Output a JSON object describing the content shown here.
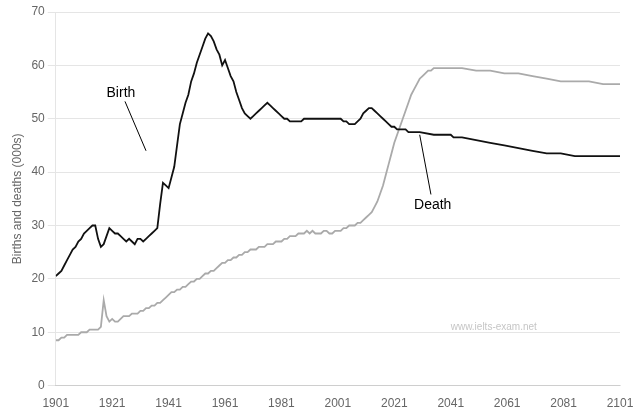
{
  "chart_data": {
    "type": "line",
    "ylabel": "Births and deaths (000s)",
    "xlim": [
      1901,
      2101
    ],
    "ylim": [
      0,
      70
    ],
    "xticks": [
      1901,
      1921,
      1941,
      1961,
      1981,
      2001,
      2021,
      2041,
      2061,
      2081,
      2101
    ],
    "yticks": [
      0,
      10,
      20,
      30,
      40,
      50,
      60,
      70
    ],
    "grid": "y",
    "series": [
      {
        "color": "#111111",
        "x": [
          1901,
          1902,
          1903,
          1904,
          1905,
          1906,
          1907,
          1908,
          1909,
          1910,
          1911,
          1912,
          1913,
          1914,
          1915,
          1916,
          1917,
          1918,
          1919,
          1920,
          1921,
          1922,
          1923,
          1924,
          1925,
          1926,
          1927,
          1928,
          1929,
          1930,
          1931,
          1932,
          1933,
          1934,
          1935,
          1936,
          1937,
          1938,
          1939,
          1940,
          1941,
          1942,
          1943,
          1944,
          1945,
          1946,
          1947,
          1948,
          1949,
          1950,
          1951,
          1952,
          1953,
          1954,
          1955,
          1956,
          1957,
          1958,
          1959,
          1960,
          1961,
          1962,
          1963,
          1964,
          1965,
          1966,
          1967,
          1968,
          1969,
          1970,
          1971,
          1972,
          1973,
          1974,
          1975,
          1976,
          1977,
          1978,
          1979,
          1980,
          1981,
          1982,
          1983,
          1984,
          1985,
          1986,
          1987,
          1988,
          1989,
          1990,
          1991,
          1992,
          1993,
          1994,
          1995,
          1996,
          1997,
          1998,
          1999,
          2000,
          2001,
          2002,
          2003,
          2004,
          2005,
          2006,
          2007,
          2008,
          2009,
          2010,
          2011,
          2012,
          2013,
          2014,
          2015,
          2016,
          2017,
          2018,
          2019,
          2020,
          2021,
          2022,
          2023,
          2024,
          2025,
          2026,
          2027,
          2028,
          2029,
          2030,
          2035,
          2040,
          2041,
          2042,
          2045,
          2050,
          2055,
          2060,
          2065,
          2070,
          2075,
          2080,
          2085,
          2090,
          2095,
          2101
        ],
        "values": [
          20.5,
          21.0,
          21.5,
          22.5,
          23.5,
          24.5,
          25.5,
          26.0,
          27.0,
          27.5,
          28.5,
          29.0,
          29.5,
          30.0,
          30.0,
          27.5,
          26.0,
          26.5,
          28.0,
          29.5,
          29.0,
          28.5,
          28.5,
          28.0,
          27.5,
          27.0,
          27.5,
          27.0,
          26.5,
          27.5,
          27.5,
          27.0,
          27.5,
          28.0,
          28.5,
          29.0,
          29.5,
          34.0,
          38.0,
          37.5,
          37.0,
          39.0,
          41.0,
          45.0,
          49.0,
          51.0,
          53.0,
          54.5,
          57.0,
          58.5,
          60.5,
          62.0,
          63.5,
          65.0,
          66.0,
          65.5,
          64.5,
          63.0,
          62.0,
          60.0,
          61.0,
          59.5,
          58.0,
          57.0,
          55.0,
          53.5,
          52.0,
          51.0,
          50.5,
          50.0,
          50.5,
          51.0,
          51.5,
          52.0,
          52.5,
          53.0,
          52.5,
          52.0,
          51.5,
          51.0,
          50.5,
          50.0,
          50.0,
          49.5,
          49.5,
          49.5,
          49.5,
          49.5,
          50.0,
          50.0,
          50.0,
          50.0,
          50.0,
          50.0,
          50.0,
          50.0,
          50.0,
          50.0,
          50.0,
          50.0,
          50.0,
          50.0,
          49.5,
          49.5,
          49.0,
          49.0,
          49.0,
          49.5,
          50.0,
          51.0,
          51.5,
          52.0,
          52.0,
          51.5,
          51.0,
          50.5,
          50.0,
          49.5,
          49.0,
          48.5,
          48.5,
          48.0,
          48.0,
          48.0,
          48.0,
          47.5,
          47.5,
          47.5,
          47.5,
          47.5,
          47.0,
          47.0,
          47.0,
          46.5,
          46.5,
          46.0,
          45.5,
          45.0,
          44.5,
          44.0,
          43.5,
          43.5,
          43.0,
          43.0,
          43.0,
          43.0
        ]
      },
      {
        "color": "#aaaaaa",
        "x": [
          1901,
          1902,
          1903,
          1904,
          1905,
          1906,
          1907,
          1908,
          1909,
          1910,
          1911,
          1912,
          1913,
          1914,
          1915,
          1916,
          1917,
          1918,
          1919,
          1920,
          1921,
          1922,
          1923,
          1924,
          1925,
          1926,
          1927,
          1928,
          1929,
          1930,
          1931,
          1932,
          1933,
          1934,
          1935,
          1936,
          1937,
          1938,
          1939,
          1940,
          1941,
          1942,
          1943,
          1944,
          1945,
          1946,
          1947,
          1948,
          1949,
          1950,
          1951,
          1952,
          1953,
          1954,
          1955,
          1956,
          1957,
          1958,
          1959,
          1960,
          1961,
          1962,
          1963,
          1964,
          1965,
          1966,
          1967,
          1968,
          1969,
          1970,
          1971,
          1972,
          1973,
          1974,
          1975,
          1976,
          1977,
          1978,
          1979,
          1980,
          1981,
          1982,
          1983,
          1984,
          1985,
          1986,
          1987,
          1988,
          1989,
          1990,
          1991,
          1992,
          1993,
          1994,
          1995,
          1996,
          1997,
          1998,
          1999,
          2000,
          2001,
          2002,
          2003,
          2004,
          2005,
          2006,
          2007,
          2008,
          2009,
          2010,
          2011,
          2012,
          2013,
          2014,
          2015,
          2016,
          2017,
          2018,
          2019,
          2020,
          2021,
          2022,
          2023,
          2024,
          2025,
          2026,
          2027,
          2028,
          2029,
          2030,
          2031,
          2032,
          2033,
          2034,
          2035,
          2036,
          2037,
          2038,
          2039,
          2040,
          2041,
          2045,
          2050,
          2055,
          2060,
          2065,
          2070,
          2075,
          2080,
          2085,
          2090,
          2095,
          2101
        ],
        "values": [
          8.5,
          8.5,
          9.0,
          9.0,
          9.5,
          9.5,
          9.5,
          9.5,
          9.5,
          10.0,
          10.0,
          10.0,
          10.5,
          10.5,
          10.5,
          10.5,
          11.0,
          16.0,
          13.0,
          12.0,
          12.5,
          12.0,
          12.0,
          12.5,
          13.0,
          13.0,
          13.0,
          13.5,
          13.5,
          13.5,
          14.0,
          14.0,
          14.5,
          14.5,
          15.0,
          15.0,
          15.5,
          15.5,
          16.0,
          16.5,
          17.0,
          17.5,
          17.5,
          18.0,
          18.0,
          18.5,
          18.5,
          19.0,
          19.5,
          19.5,
          20.0,
          20.0,
          20.5,
          21.0,
          21.0,
          21.5,
          21.5,
          22.0,
          22.5,
          23.0,
          23.0,
          23.5,
          23.5,
          24.0,
          24.0,
          24.5,
          24.5,
          25.0,
          25.0,
          25.5,
          25.5,
          25.5,
          26.0,
          26.0,
          26.0,
          26.5,
          26.5,
          26.5,
          27.0,
          27.0,
          27.0,
          27.5,
          27.5,
          28.0,
          28.0,
          28.0,
          28.5,
          28.5,
          28.5,
          29.0,
          28.5,
          29.0,
          28.5,
          28.5,
          28.5,
          29.0,
          29.0,
          28.5,
          28.5,
          29.0,
          29.0,
          29.0,
          29.5,
          29.5,
          30.0,
          30.0,
          30.0,
          30.5,
          30.5,
          31.0,
          31.5,
          32.0,
          32.5,
          33.5,
          34.5,
          36.0,
          37.5,
          39.5,
          41.5,
          43.5,
          45.5,
          47.0,
          48.5,
          50.0,
          51.5,
          53.0,
          54.5,
          55.5,
          56.5,
          57.5,
          58.0,
          58.5,
          59.0,
          59.0,
          59.5,
          59.5,
          59.5,
          59.5,
          59.5,
          59.5,
          59.5,
          59.5,
          59.0,
          59.0,
          58.5,
          58.5,
          58.0,
          57.5,
          57.0,
          57.0,
          57.0,
          56.5,
          56.5
        ]
      }
    ],
    "annotations": [
      {
        "text": "Birth",
        "x": 1919,
        "y": 54,
        "arrow_to": [
          1933,
          44
        ]
      },
      {
        "text": "Death",
        "x": 2028,
        "y": 33,
        "arrow_to": [
          2030,
          47
        ]
      },
      {
        "text": "www.ielts-exam.net"
      }
    ]
  }
}
